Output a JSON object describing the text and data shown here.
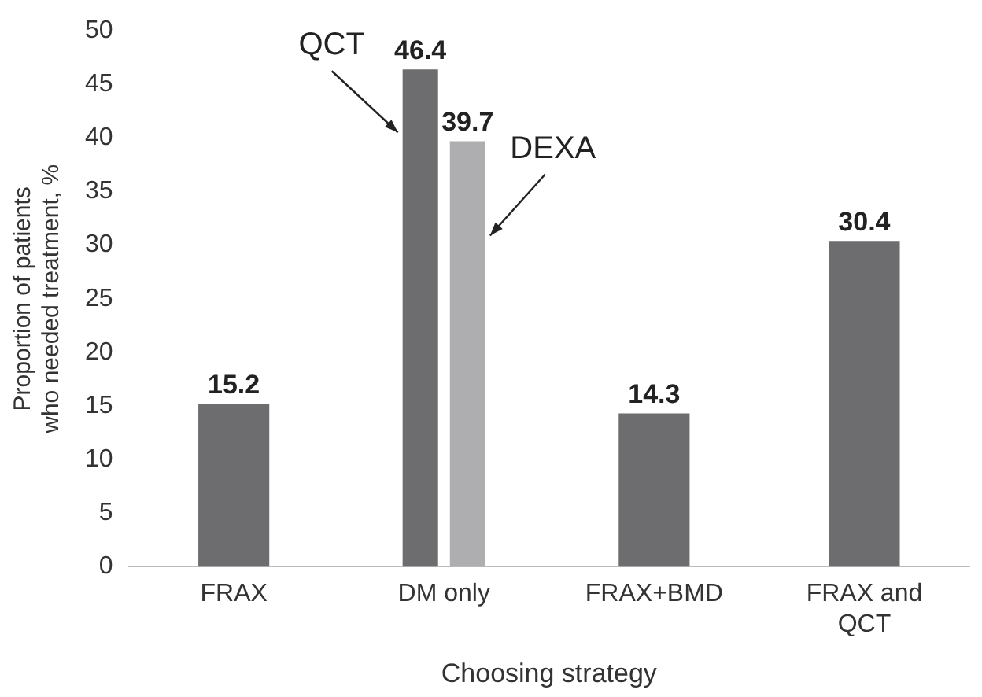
{
  "chart_data": {
    "type": "bar",
    "xlabel": "Choosing strategy",
    "ylabel": "Proportion of patients who needed treatment, %",
    "categories": [
      "FRAX",
      "DM only",
      "FRAX+BMD",
      "FRAX and QCT"
    ],
    "series": [
      {
        "name": "QCT",
        "color": "#6d6d70",
        "values": [
          15.2,
          46.4,
          14.3,
          30.4
        ]
      },
      {
        "name": "DEXA",
        "color": "#aeaeb0",
        "values": [
          null,
          39.7,
          null,
          null
        ]
      }
    ],
    "ylim": [
      0,
      50
    ],
    "yticks": [
      0,
      5,
      10,
      15,
      20,
      25,
      30,
      35,
      40,
      45,
      50
    ],
    "grid": false,
    "legend": false,
    "data_labels": true
  }
}
